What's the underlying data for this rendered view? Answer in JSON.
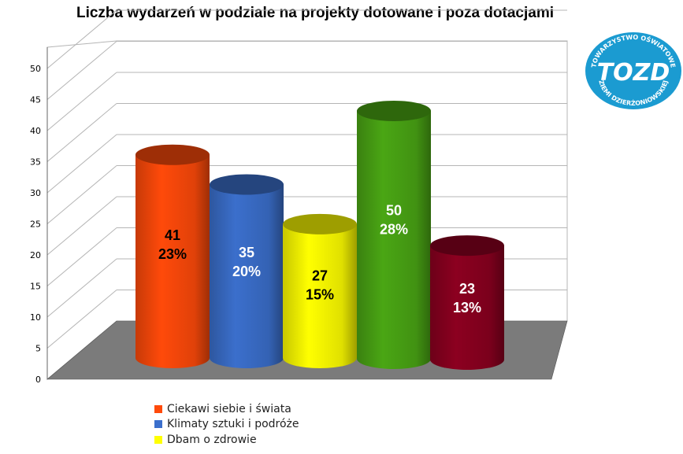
{
  "chart_data": {
    "type": "bar",
    "title": "Liczba wydarzeń w podziale na projekty dotowane i poza dotacjami",
    "categories": [
      "Ciekawi siebie i świata",
      "Klimaty sztuki i podróże",
      "Dbam o zdrowie",
      "",
      ""
    ],
    "values": [
      41,
      35,
      27,
      50,
      23
    ],
    "percent_labels": [
      "23%",
      "20%",
      "15%",
      "28%",
      "13%"
    ],
    "colors": [
      "#ff4a0a",
      "#3b6fcc",
      "#ffff00",
      "#4aa614",
      "#8c0020"
    ],
    "label_colors": [
      "#000000",
      "#ffffff",
      "#000000",
      "#ffffff",
      "#ffffff"
    ],
    "ylim": [
      0,
      50
    ],
    "yticks": [
      "0",
      "5",
      "10",
      "15",
      "20",
      "25",
      "30",
      "35",
      "40",
      "45",
      "50"
    ],
    "xlabel": "",
    "ylabel": "",
    "grid": true,
    "legend_position": "bottom"
  },
  "legend": [
    {
      "label": "Ciekawi siebie i świata",
      "color": "#ff4a0a"
    },
    {
      "label": "Klimaty sztuki i podróże",
      "color": "#3b6fcc"
    },
    {
      "label": "Dbam o zdrowie",
      "color": "#ffff00"
    }
  ],
  "logo": {
    "text_top": "TOWARZYSTWO OŚWIATOWE",
    "text_bottom": "ZIEMI DZIERŻONIOWSKIEJ",
    "monogram": "TOZD",
    "color": "#1b9bd1"
  }
}
